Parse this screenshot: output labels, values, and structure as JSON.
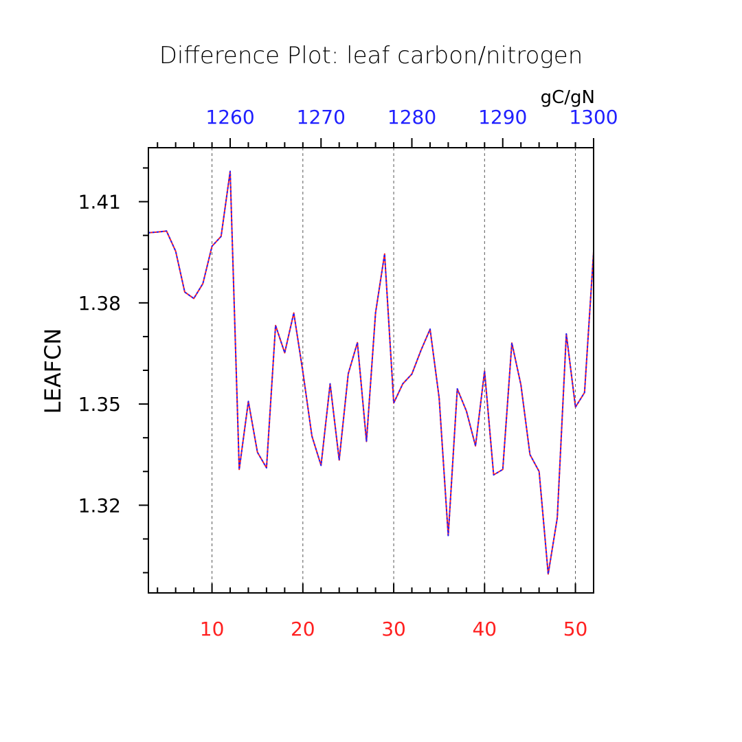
{
  "chart_data": {
    "type": "line",
    "title": "Difference Plot: leaf carbon/nitrogen",
    "ylabel": "LEAFCN",
    "units": "gC/gN",
    "x_bottom": {
      "range": [
        3,
        52
      ],
      "ticks": [
        10,
        20,
        30,
        40,
        50
      ],
      "tick_labels": [
        "10",
        "20",
        "30",
        "40",
        "50"
      ],
      "color": "#ff2020"
    },
    "x_top": {
      "range": [
        1251,
        1300
      ],
      "ticks": [
        1260,
        1270,
        1280,
        1290,
        1300
      ],
      "tick_labels": [
        "1260",
        "1270",
        "1280",
        "1290",
        "1300"
      ],
      "color": "#2020ff"
    },
    "y": {
      "range": [
        1.294,
        1.426
      ],
      "ticks": [
        1.32,
        1.35,
        1.38,
        1.41
      ],
      "tick_labels": [
        "1.32",
        "1.35",
        "1.38",
        "1.41"
      ]
    },
    "grid": "vertical dashed at major x ticks",
    "series": [
      {
        "color": "#ff2020",
        "style": "solid",
        "x": [
          3,
          4,
          5,
          6,
          7,
          8,
          9,
          10,
          11,
          12,
          13,
          14,
          15,
          16,
          17,
          18,
          19,
          20,
          21,
          22,
          23,
          24,
          25,
          26,
          27,
          28,
          29,
          30,
          31,
          32,
          33,
          34,
          35,
          36,
          37,
          38,
          39,
          40,
          41,
          42,
          43,
          44,
          45,
          46,
          47,
          48,
          49,
          50,
          51,
          52
        ],
        "y": [
          1.4008,
          1.401,
          1.4013,
          1.3953,
          1.3832,
          1.3813,
          1.3857,
          1.3968,
          1.3997,
          1.419,
          1.3306,
          1.3508,
          1.3357,
          1.3311,
          1.3733,
          1.3652,
          1.377,
          1.3596,
          1.3405,
          1.3318,
          1.356,
          1.3334,
          1.359,
          1.3682,
          1.3389,
          1.377,
          1.3945,
          1.3503,
          1.356,
          1.3589,
          1.3659,
          1.3722,
          1.3518,
          1.311,
          1.3545,
          1.3479,
          1.3376,
          1.3598,
          1.329,
          1.3306,
          1.3681,
          1.3557,
          1.335,
          1.33,
          1.2996,
          1.3162,
          1.3708,
          1.3491,
          1.3534,
          1.3951
        ]
      },
      {
        "color": "#2020ff",
        "style": "dashed",
        "x": [
          3,
          4,
          5,
          6,
          7,
          8,
          9,
          10,
          11,
          12,
          13,
          14,
          15,
          16,
          17,
          18,
          19,
          20,
          21,
          22,
          23,
          24,
          25,
          26,
          27,
          28,
          29,
          30,
          31,
          32,
          33,
          34,
          35,
          36,
          37,
          38,
          39,
          40,
          41,
          42,
          43,
          44,
          45,
          46,
          47,
          48,
          49,
          50,
          51,
          52
        ],
        "y": [
          1.4008,
          1.401,
          1.4013,
          1.3953,
          1.3832,
          1.3813,
          1.3857,
          1.3968,
          1.3997,
          1.419,
          1.3306,
          1.3508,
          1.3357,
          1.3311,
          1.3733,
          1.3652,
          1.377,
          1.3596,
          1.3405,
          1.3318,
          1.356,
          1.3334,
          1.359,
          1.3682,
          1.3389,
          1.377,
          1.3945,
          1.3503,
          1.356,
          1.3589,
          1.3659,
          1.3722,
          1.3518,
          1.311,
          1.3545,
          1.3479,
          1.3376,
          1.3598,
          1.329,
          1.3306,
          1.3681,
          1.3557,
          1.335,
          1.33,
          1.2996,
          1.3162,
          1.3708,
          1.3491,
          1.3534,
          1.3951
        ]
      }
    ]
  }
}
